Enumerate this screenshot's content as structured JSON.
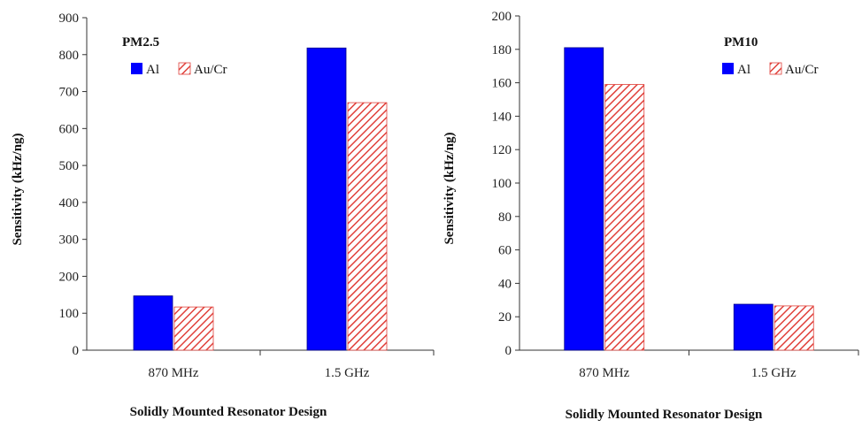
{
  "chart_data": [
    {
      "type": "bar",
      "title": "PM2.5",
      "xlabel": "Solidly Mounted Resonator Design",
      "ylabel": "Sensitivity (kHz/ng)",
      "categories": [
        "870 MHz",
        "1.5 GHz"
      ],
      "ylim": [
        0,
        900
      ],
      "yticks": [
        0,
        100,
        200,
        300,
        400,
        500,
        600,
        700,
        800,
        900
      ],
      "grid": false,
      "legend_position": "top-left",
      "series": [
        {
          "name": "Al",
          "values": [
            147,
            818
          ],
          "color": "#0000FF",
          "pattern": "solid"
        },
        {
          "name": "Au/Cr",
          "values": [
            117,
            670
          ],
          "color": "#E0403A",
          "pattern": "diagonal-hatch"
        }
      ]
    },
    {
      "type": "bar",
      "title": "PM10",
      "xlabel": "Solidly Mounted Resonator Design",
      "ylabel": "Sensitivity (kHz/ng)",
      "categories": [
        "870 MHz",
        "1.5 GHz"
      ],
      "ylim": [
        0,
        200
      ],
      "yticks": [
        0,
        20,
        40,
        60,
        80,
        100,
        120,
        140,
        160,
        180,
        200
      ],
      "grid": false,
      "legend_position": "top-right",
      "series": [
        {
          "name": "Al",
          "values": [
            181,
            27.5
          ],
          "color": "#0000FF",
          "pattern": "solid"
        },
        {
          "name": "Au/Cr",
          "values": [
            159,
            26.5
          ],
          "color": "#E0403A",
          "pattern": "diagonal-hatch"
        }
      ]
    }
  ]
}
